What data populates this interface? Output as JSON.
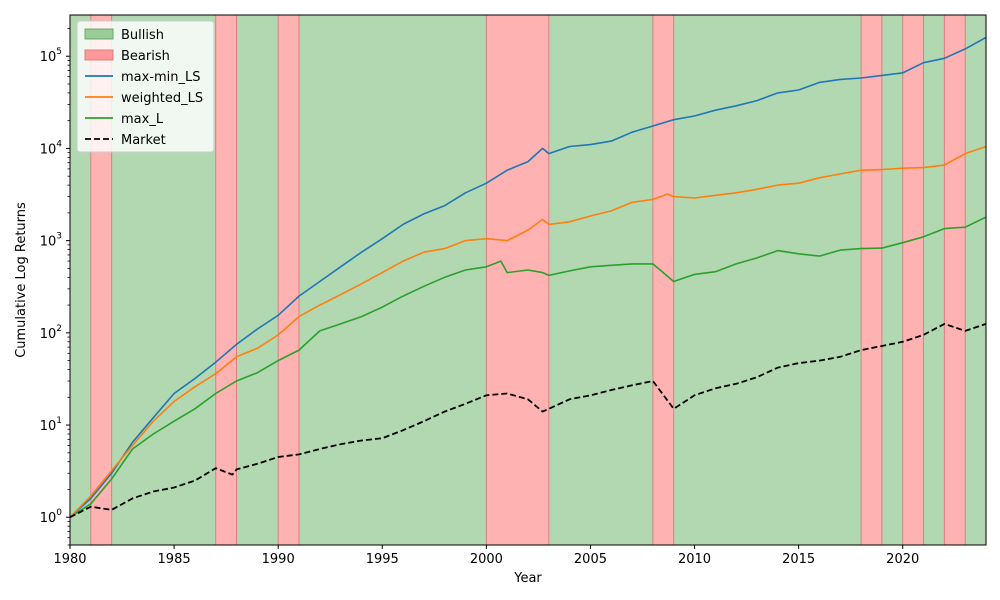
{
  "chart_data": {
    "type": "line",
    "title": "",
    "xlabel": "Year",
    "ylabel": "Cumulative Log Returns",
    "xlim": [
      1980,
      2024
    ],
    "ylim": [
      0.5,
      280000
    ],
    "y_scale": "log",
    "x_ticks": [
      1980,
      1985,
      1990,
      1995,
      2000,
      2005,
      2010,
      2015,
      2020
    ],
    "y_ticks": [
      {
        "value": 1,
        "base": "10",
        "exp": "0"
      },
      {
        "value": 10,
        "base": "10",
        "exp": "1"
      },
      {
        "value": 100,
        "base": "10",
        "exp": "2"
      },
      {
        "value": 1000,
        "base": "10",
        "exp": "3"
      },
      {
        "value": 10000,
        "base": "10",
        "exp": "4"
      },
      {
        "value": 100000,
        "base": "10",
        "exp": "5"
      }
    ],
    "grid": false,
    "legend_position": "top-left",
    "regimes": {
      "background": {
        "name": "Bullish",
        "color": "#b2d8b2"
      },
      "bearish": {
        "name": "Bearish",
        "color": "#ffb2b2",
        "edge": "#d98080"
      },
      "bearish_periods": [
        [
          1981,
          1982
        ],
        [
          1987,
          1988
        ],
        [
          1990,
          1991
        ],
        [
          2000,
          2003
        ],
        [
          2008,
          2009
        ],
        [
          2018,
          2019
        ],
        [
          2020,
          2021
        ],
        [
          2022,
          2023
        ]
      ]
    },
    "series": [
      {
        "name": "max-min_LS",
        "color": "#1f77b4",
        "style": "solid",
        "points": [
          [
            1980,
            1.0
          ],
          [
            1981,
            1.6
          ],
          [
            1982,
            3.0
          ],
          [
            1983,
            6.5
          ],
          [
            1984,
            12
          ],
          [
            1985,
            22
          ],
          [
            1986,
            32
          ],
          [
            1987,
            48
          ],
          [
            1988,
            75
          ],
          [
            1989,
            110
          ],
          [
            1990,
            155
          ],
          [
            1991,
            250
          ],
          [
            1992,
            360
          ],
          [
            1993,
            520
          ],
          [
            1994,
            750
          ],
          [
            1995,
            1050
          ],
          [
            1996,
            1500
          ],
          [
            1997,
            1950
          ],
          [
            1998,
            2400
          ],
          [
            1999,
            3300
          ],
          [
            2000,
            4200
          ],
          [
            2001,
            5800
          ],
          [
            2002,
            7200
          ],
          [
            2002.7,
            10000
          ],
          [
            2003,
            8800
          ],
          [
            2004,
            10500
          ],
          [
            2005,
            11000
          ],
          [
            2006,
            12000
          ],
          [
            2007,
            15000
          ],
          [
            2008,
            17500
          ],
          [
            2009,
            20500
          ],
          [
            2010,
            22500
          ],
          [
            2011,
            26000
          ],
          [
            2012,
            29000
          ],
          [
            2013,
            33000
          ],
          [
            2014,
            40000
          ],
          [
            2015,
            43000
          ],
          [
            2016,
            52000
          ],
          [
            2017,
            56000
          ],
          [
            2018,
            58000
          ],
          [
            2019,
            62000
          ],
          [
            2020,
            66000
          ],
          [
            2021,
            85000
          ],
          [
            2022,
            95000
          ],
          [
            2023,
            120000
          ],
          [
            2024,
            160000
          ]
        ]
      },
      {
        "name": "weighted_LS",
        "color": "#ff7f0e",
        "style": "solid",
        "points": [
          [
            1980,
            1.0
          ],
          [
            1981,
            1.7
          ],
          [
            1982,
            3.2
          ],
          [
            1983,
            6.0
          ],
          [
            1984,
            11
          ],
          [
            1985,
            18
          ],
          [
            1986,
            26
          ],
          [
            1987,
            36
          ],
          [
            1988,
            55
          ],
          [
            1989,
            68
          ],
          [
            1990,
            95
          ],
          [
            1991,
            150
          ],
          [
            1992,
            200
          ],
          [
            1993,
            260
          ],
          [
            1994,
            340
          ],
          [
            1995,
            450
          ],
          [
            1996,
            600
          ],
          [
            1997,
            750
          ],
          [
            1998,
            820
          ],
          [
            1999,
            1000
          ],
          [
            2000,
            1050
          ],
          [
            2001,
            1000
          ],
          [
            2002,
            1300
          ],
          [
            2002.7,
            1700
          ],
          [
            2003,
            1500
          ],
          [
            2004,
            1600
          ],
          [
            2005,
            1850
          ],
          [
            2006,
            2100
          ],
          [
            2007,
            2600
          ],
          [
            2008,
            2800
          ],
          [
            2008.7,
            3200
          ],
          [
            2009,
            3000
          ],
          [
            2010,
            2900
          ],
          [
            2011,
            3100
          ],
          [
            2012,
            3300
          ],
          [
            2013,
            3600
          ],
          [
            2014,
            4000
          ],
          [
            2015,
            4200
          ],
          [
            2016,
            4800
          ],
          [
            2017,
            5300
          ],
          [
            2018,
            5800
          ],
          [
            2019,
            5900
          ],
          [
            2020,
            6100
          ],
          [
            2021,
            6200
          ],
          [
            2022,
            6600
          ],
          [
            2023,
            8800
          ],
          [
            2024,
            10500
          ]
        ]
      },
      {
        "name": "max_L",
        "color": "#2ca02c",
        "style": "solid",
        "points": [
          [
            1980,
            1.0
          ],
          [
            1981,
            1.4
          ],
          [
            1982,
            2.6
          ],
          [
            1983,
            5.5
          ],
          [
            1984,
            8.0
          ],
          [
            1985,
            11
          ],
          [
            1986,
            15
          ],
          [
            1987,
            22
          ],
          [
            1988,
            30
          ],
          [
            1989,
            37
          ],
          [
            1990,
            50
          ],
          [
            1991,
            65
          ],
          [
            1992,
            105
          ],
          [
            1993,
            125
          ],
          [
            1994,
            150
          ],
          [
            1995,
            190
          ],
          [
            1996,
            250
          ],
          [
            1997,
            320
          ],
          [
            1998,
            400
          ],
          [
            1999,
            480
          ],
          [
            2000,
            520
          ],
          [
            2000.7,
            600
          ],
          [
            2001,
            450
          ],
          [
            2002,
            480
          ],
          [
            2002.7,
            450
          ],
          [
            2003,
            420
          ],
          [
            2004,
            470
          ],
          [
            2005,
            520
          ],
          [
            2006,
            540
          ],
          [
            2007,
            560
          ],
          [
            2008,
            560
          ],
          [
            2009,
            360
          ],
          [
            2010,
            430
          ],
          [
            2011,
            460
          ],
          [
            2012,
            560
          ],
          [
            2013,
            650
          ],
          [
            2014,
            780
          ],
          [
            2015,
            720
          ],
          [
            2016,
            680
          ],
          [
            2017,
            790
          ],
          [
            2018,
            820
          ],
          [
            2019,
            830
          ],
          [
            2020,
            950
          ],
          [
            2021,
            1100
          ],
          [
            2022,
            1350
          ],
          [
            2023,
            1400
          ],
          [
            2024,
            1800
          ]
        ]
      },
      {
        "name": "Market",
        "color": "#000000",
        "style": "dashed",
        "points": [
          [
            1980,
            1.0
          ],
          [
            1981,
            1.3
          ],
          [
            1982,
            1.2
          ],
          [
            1983,
            1.6
          ],
          [
            1984,
            1.9
          ],
          [
            1985,
            2.1
          ],
          [
            1986,
            2.5
          ],
          [
            1987,
            3.4
          ],
          [
            1987.8,
            2.9
          ],
          [
            1988,
            3.3
          ],
          [
            1989,
            3.8
          ],
          [
            1990,
            4.5
          ],
          [
            1991,
            4.8
          ],
          [
            1992,
            5.5
          ],
          [
            1993,
            6.2
          ],
          [
            1994,
            6.8
          ],
          [
            1995,
            7.2
          ],
          [
            1996,
            8.8
          ],
          [
            1997,
            11
          ],
          [
            1998,
            14
          ],
          [
            1999,
            17
          ],
          [
            2000,
            21
          ],
          [
            2001,
            22
          ],
          [
            2002,
            19
          ],
          [
            2002.7,
            14
          ],
          [
            2003,
            15
          ],
          [
            2004,
            19
          ],
          [
            2005,
            21
          ],
          [
            2006,
            24
          ],
          [
            2007,
            27
          ],
          [
            2008,
            30
          ],
          [
            2009,
            15
          ],
          [
            2010,
            21
          ],
          [
            2011,
            25
          ],
          [
            2012,
            28
          ],
          [
            2013,
            33
          ],
          [
            2014,
            42
          ],
          [
            2015,
            47
          ],
          [
            2016,
            50
          ],
          [
            2017,
            55
          ],
          [
            2018,
            65
          ],
          [
            2019,
            72
          ],
          [
            2020,
            80
          ],
          [
            2021,
            95
          ],
          [
            2022,
            125
          ],
          [
            2023,
            105
          ],
          [
            2024,
            125
          ]
        ]
      }
    ]
  }
}
